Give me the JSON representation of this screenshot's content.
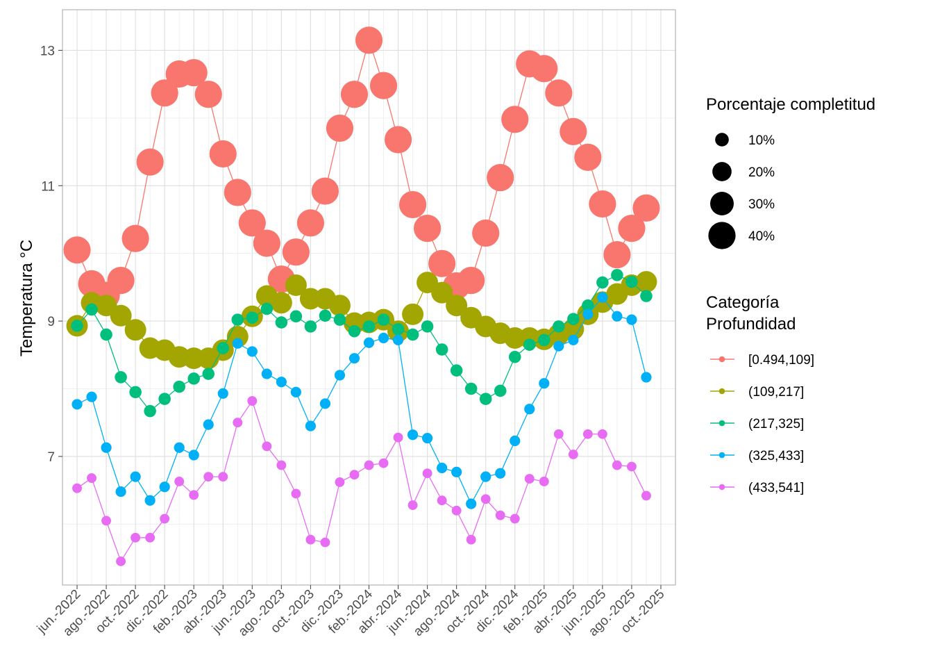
{
  "chart_data": {
    "type": "line",
    "title": "",
    "xlabel": "",
    "ylabel": "Temperatura °C",
    "x": [
      "2022-06",
      "2022-07",
      "2022-08",
      "2022-09",
      "2022-10",
      "2022-11",
      "2022-12",
      "2023-01",
      "2023-02",
      "2023-03",
      "2023-04",
      "2023-05",
      "2023-06",
      "2023-07",
      "2023-08",
      "2023-09",
      "2023-10",
      "2023-11",
      "2023-12",
      "2024-01",
      "2024-02",
      "2024-03",
      "2024-04",
      "2024-05",
      "2024-06",
      "2024-07",
      "2024-08",
      "2024-09",
      "2024-10",
      "2024-11",
      "2024-12",
      "2025-01",
      "2025-02",
      "2025-03",
      "2025-04",
      "2025-05",
      "2025-06",
      "2025-07",
      "2025-08",
      "2025-09"
    ],
    "x_ticks": [
      "jun.-2022",
      "ago.-2022",
      "oct.-2022",
      "dic.-2022",
      "feb.-2023",
      "abr.-2023",
      "jun.-2023",
      "ago.-2023",
      "oct.-2023",
      "dic.-2023",
      "feb.-2024",
      "abr.-2024",
      "jun.-2024",
      "ago.-2024",
      "oct.-2024",
      "dic.-2024",
      "feb.-2025",
      "abr.-2025",
      "jun.-2025",
      "ago.-2025",
      "oct.-2025"
    ],
    "x_tick_dates": [
      "2022-06",
      "2022-08",
      "2022-10",
      "2022-12",
      "2023-02",
      "2023-04",
      "2023-06",
      "2023-08",
      "2023-10",
      "2023-12",
      "2024-02",
      "2024-04",
      "2024-06",
      "2024-08",
      "2024-10",
      "2024-12",
      "2025-02",
      "2025-04",
      "2025-06",
      "2025-08",
      "2025-10"
    ],
    "xlim": [
      "2022-05",
      "2025-11"
    ],
    "y_ticks": [
      7,
      9,
      11,
      13
    ],
    "ylim": [
      5.1,
      13.6
    ],
    "grid": true,
    "legend_position": "right",
    "size_legend": {
      "title": "Porcentaje completitud",
      "entries": [
        {
          "label": "10%",
          "value": 10
        },
        {
          "label": "20%",
          "value": 20
        },
        {
          "label": "30%",
          "value": 30
        },
        {
          "label": "40%",
          "value": 40
        }
      ]
    },
    "color_legend": {
      "title_lines": [
        "Categoría",
        "Profundidad"
      ]
    },
    "series": [
      {
        "name": "[0.494,109]",
        "color": "#F8766D",
        "size": 40,
        "values": [
          10.05,
          9.55,
          9.38,
          9.6,
          10.22,
          11.35,
          12.37,
          12.65,
          12.67,
          12.35,
          11.47,
          10.9,
          10.45,
          10.15,
          9.62,
          10.02,
          10.45,
          10.92,
          11.85,
          12.35,
          13.15,
          12.48,
          11.68,
          10.72,
          10.37,
          9.85,
          9.52,
          9.6,
          10.3,
          11.12,
          11.98,
          12.8,
          12.73,
          12.37,
          11.8,
          11.42,
          10.73,
          9.98,
          10.37,
          10.67
        ]
      },
      {
        "name": "(109,217]",
        "color": "#A3A500",
        "size": 25,
        "values": [
          8.93,
          9.27,
          9.23,
          9.08,
          8.87,
          8.6,
          8.57,
          8.47,
          8.45,
          8.45,
          8.57,
          8.77,
          9.07,
          9.37,
          9.27,
          9.53,
          9.33,
          9.33,
          9.23,
          8.97,
          8.98,
          9.02,
          8.85,
          9.1,
          9.57,
          9.42,
          9.23,
          9.05,
          8.92,
          8.82,
          8.75,
          8.75,
          8.73,
          8.8,
          8.88,
          9.1,
          9.28,
          9.4,
          9.53,
          9.58
        ]
      },
      {
        "name": "(217,325]",
        "color": "#00BF7D",
        "size": 8,
        "values": [
          8.93,
          9.17,
          8.8,
          8.17,
          7.95,
          7.67,
          7.85,
          8.03,
          8.15,
          8.22,
          8.6,
          9.02,
          9.05,
          9.18,
          8.98,
          9.07,
          8.92,
          9.08,
          9.02,
          8.85,
          8.92,
          9.02,
          8.88,
          8.8,
          8.92,
          8.58,
          8.27,
          8.0,
          7.85,
          7.97,
          8.47,
          8.65,
          8.72,
          8.92,
          9.03,
          9.23,
          9.57,
          9.68,
          9.58,
          9.37
        ]
      },
      {
        "name": "(325,433]",
        "color": "#00B0F6",
        "size": 6,
        "values": [
          7.77,
          7.88,
          7.13,
          6.48,
          6.7,
          6.35,
          6.55,
          7.13,
          7.02,
          7.47,
          7.93,
          8.67,
          8.55,
          8.22,
          8.1,
          7.95,
          7.45,
          7.78,
          8.2,
          8.45,
          8.68,
          8.75,
          8.72,
          7.32,
          7.27,
          6.83,
          6.77,
          6.3,
          6.7,
          6.75,
          7.23,
          7.7,
          8.08,
          8.63,
          8.72,
          9.1,
          9.35,
          9.07,
          9.02,
          8.17
        ]
      },
      {
        "name": "(433,541]",
        "color": "#E76BF3",
        "size": 5,
        "values": [
          6.53,
          6.68,
          6.05,
          5.45,
          5.8,
          5.8,
          6.08,
          6.63,
          6.43,
          6.7,
          6.7,
          7.5,
          7.82,
          7.15,
          6.87,
          6.45,
          5.77,
          5.73,
          6.62,
          6.73,
          6.87,
          6.9,
          7.28,
          6.28,
          6.75,
          6.35,
          6.2,
          5.77,
          6.37,
          6.13,
          6.08,
          6.67,
          6.63,
          7.33,
          7.03,
          7.33,
          7.33,
          6.87,
          6.85,
          6.42
        ]
      }
    ]
  }
}
